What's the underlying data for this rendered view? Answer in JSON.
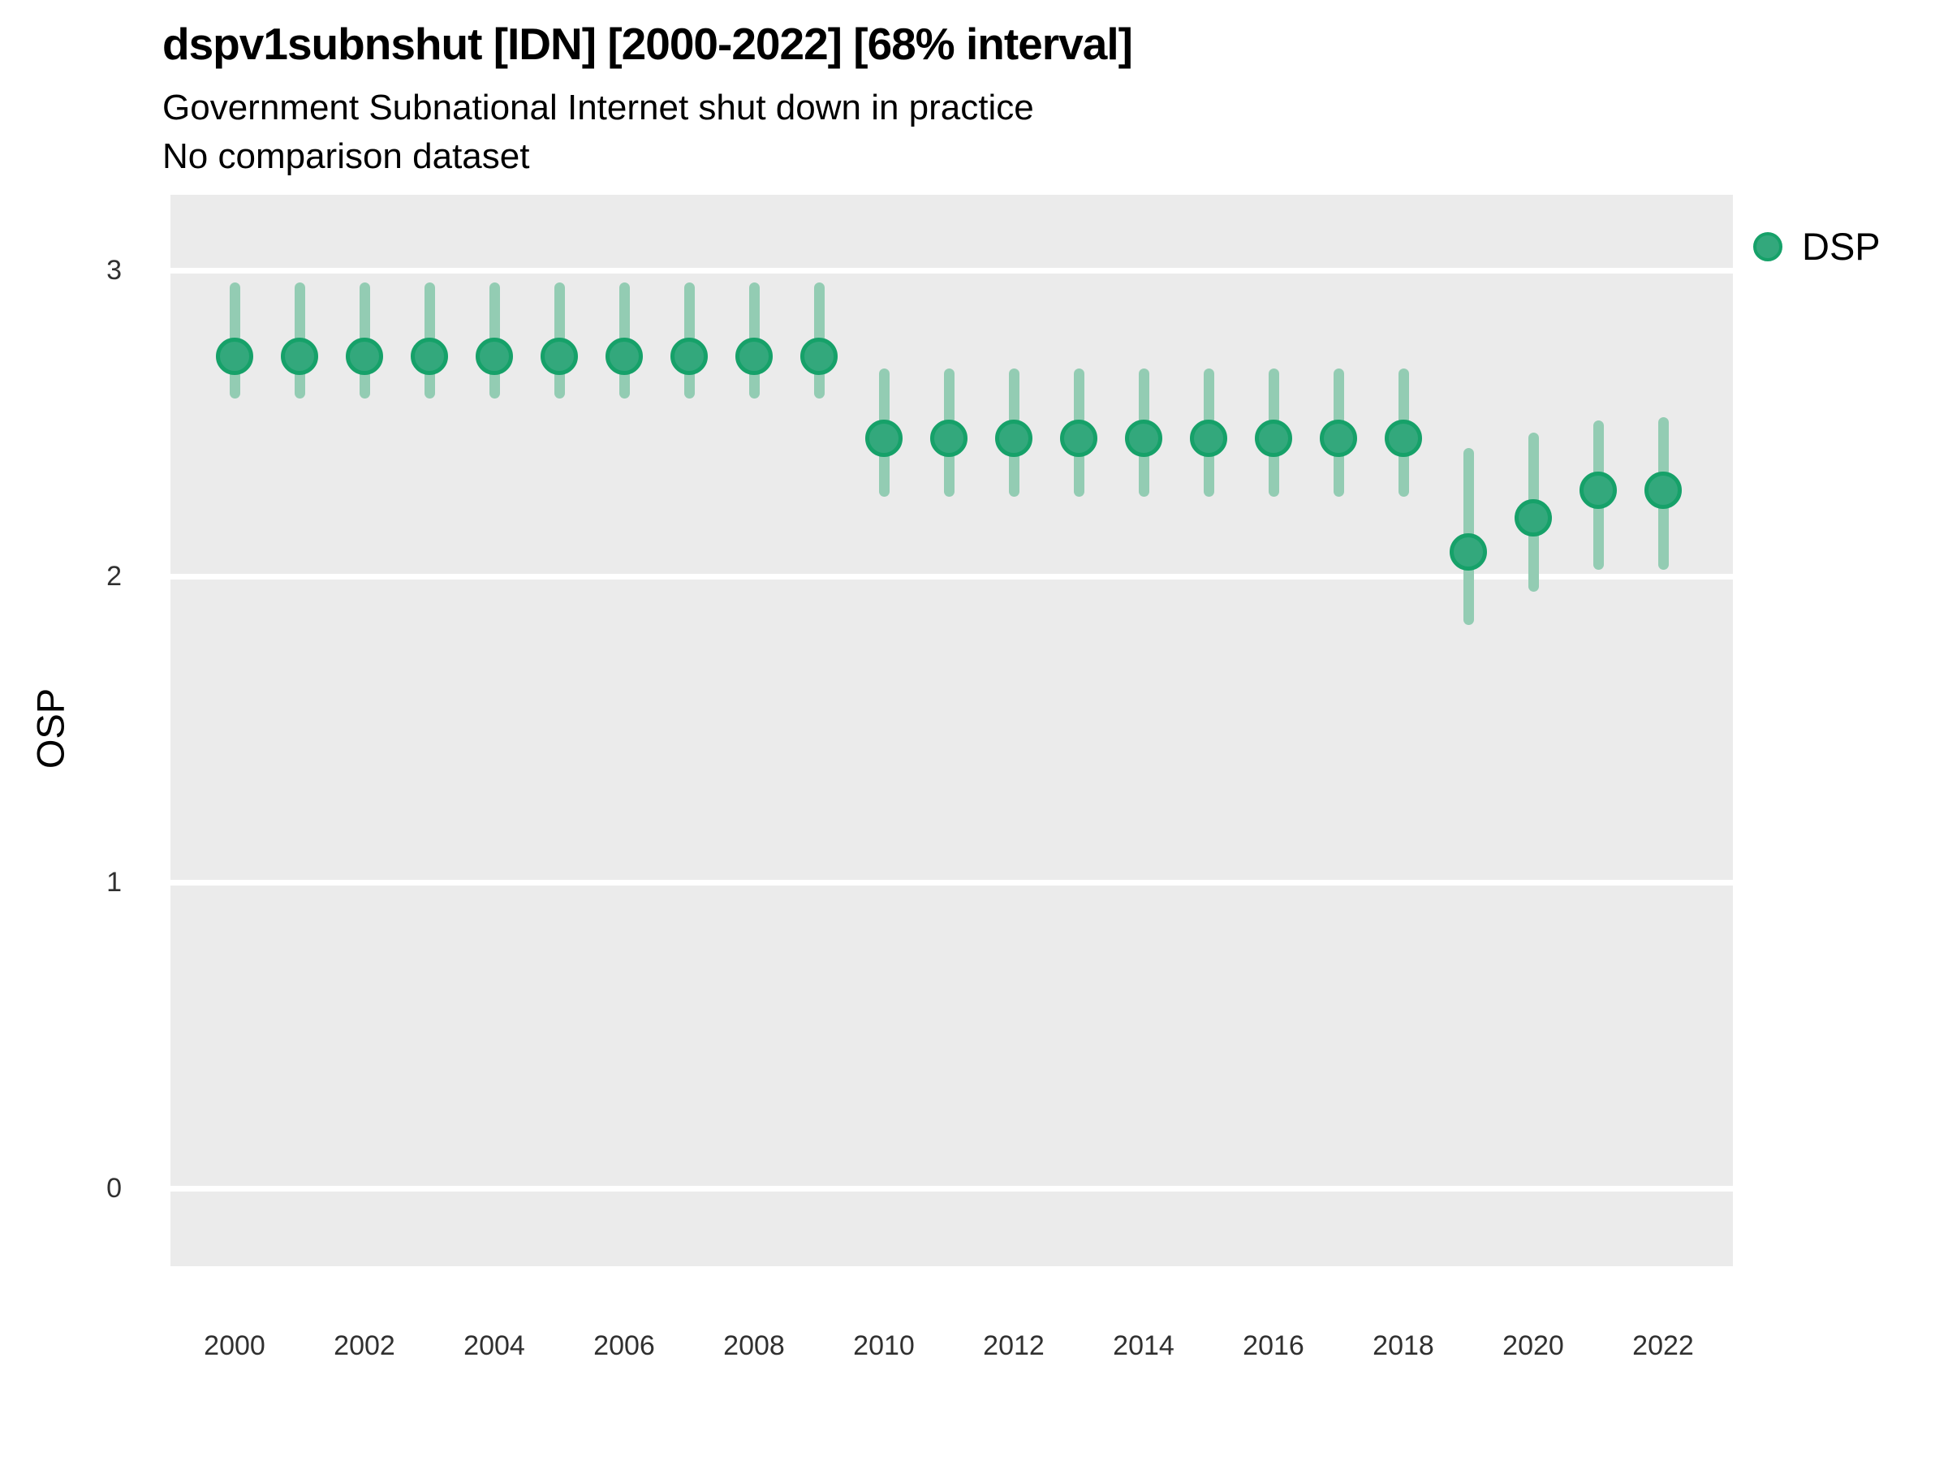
{
  "header": {
    "title": "dspv1subnshut [IDN] [2000-2022] [68% interval]",
    "subtitle1": "Government Subnational Internet shut down in practice",
    "subtitle2": "No comparison dataset"
  },
  "legend": {
    "label": "DSP"
  },
  "axes": {
    "y_title": "OSP",
    "y_ticks": [
      3,
      2,
      1,
      0
    ],
    "x_ticks": [
      2000,
      2002,
      2004,
      2006,
      2008,
      2010,
      2012,
      2014,
      2016,
      2018,
      2020,
      2022
    ]
  },
  "colors": {
    "point_fill": "#33a87c",
    "point_border": "#16a169",
    "interval": "#93ccb3",
    "panel_bg": "#ebebeb",
    "gridline": "#ffffff",
    "tick_text": "#303030"
  },
  "chart_data": {
    "type": "scatter",
    "title": "dspv1subnshut [IDN] [2000-2022] [68% interval]",
    "subtitle": [
      "Government Subnational Internet shut down in practice",
      "No comparison dataset"
    ],
    "xlabel": "",
    "ylabel": "OSP",
    "xlim": [
      1999,
      2023
    ],
    "ylim": [
      -0.25,
      3.25
    ],
    "y_ticks": [
      0,
      1,
      2,
      3
    ],
    "x_ticks": [
      2000,
      2002,
      2004,
      2006,
      2008,
      2010,
      2012,
      2014,
      2016,
      2018,
      2020,
      2022
    ],
    "grid": "horizontal-only",
    "legend_position": "right",
    "interval": "68%",
    "series": [
      {
        "name": "DSP",
        "points": [
          {
            "year": 2000,
            "value": 2.72,
            "lo": 2.58,
            "hi": 2.96
          },
          {
            "year": 2001,
            "value": 2.72,
            "lo": 2.58,
            "hi": 2.96
          },
          {
            "year": 2002,
            "value": 2.72,
            "lo": 2.58,
            "hi": 2.96
          },
          {
            "year": 2003,
            "value": 2.72,
            "lo": 2.58,
            "hi": 2.96
          },
          {
            "year": 2004,
            "value": 2.72,
            "lo": 2.58,
            "hi": 2.96
          },
          {
            "year": 2005,
            "value": 2.72,
            "lo": 2.58,
            "hi": 2.96
          },
          {
            "year": 2006,
            "value": 2.72,
            "lo": 2.58,
            "hi": 2.96
          },
          {
            "year": 2007,
            "value": 2.72,
            "lo": 2.58,
            "hi": 2.96
          },
          {
            "year": 2008,
            "value": 2.72,
            "lo": 2.58,
            "hi": 2.96
          },
          {
            "year": 2009,
            "value": 2.72,
            "lo": 2.58,
            "hi": 2.96
          },
          {
            "year": 2010,
            "value": 2.45,
            "lo": 2.26,
            "hi": 2.68
          },
          {
            "year": 2011,
            "value": 2.45,
            "lo": 2.26,
            "hi": 2.68
          },
          {
            "year": 2012,
            "value": 2.45,
            "lo": 2.26,
            "hi": 2.68
          },
          {
            "year": 2013,
            "value": 2.45,
            "lo": 2.26,
            "hi": 2.68
          },
          {
            "year": 2014,
            "value": 2.45,
            "lo": 2.26,
            "hi": 2.68
          },
          {
            "year": 2015,
            "value": 2.45,
            "lo": 2.26,
            "hi": 2.68
          },
          {
            "year": 2016,
            "value": 2.45,
            "lo": 2.26,
            "hi": 2.68
          },
          {
            "year": 2017,
            "value": 2.45,
            "lo": 2.26,
            "hi": 2.68
          },
          {
            "year": 2018,
            "value": 2.45,
            "lo": 2.26,
            "hi": 2.68
          },
          {
            "year": 2019,
            "value": 2.08,
            "lo": 1.84,
            "hi": 2.42
          },
          {
            "year": 2020,
            "value": 2.19,
            "lo": 1.95,
            "hi": 2.47
          },
          {
            "year": 2021,
            "value": 2.28,
            "lo": 2.02,
            "hi": 2.51
          },
          {
            "year": 2022,
            "value": 2.28,
            "lo": 2.02,
            "hi": 2.52
          }
        ]
      }
    ]
  }
}
